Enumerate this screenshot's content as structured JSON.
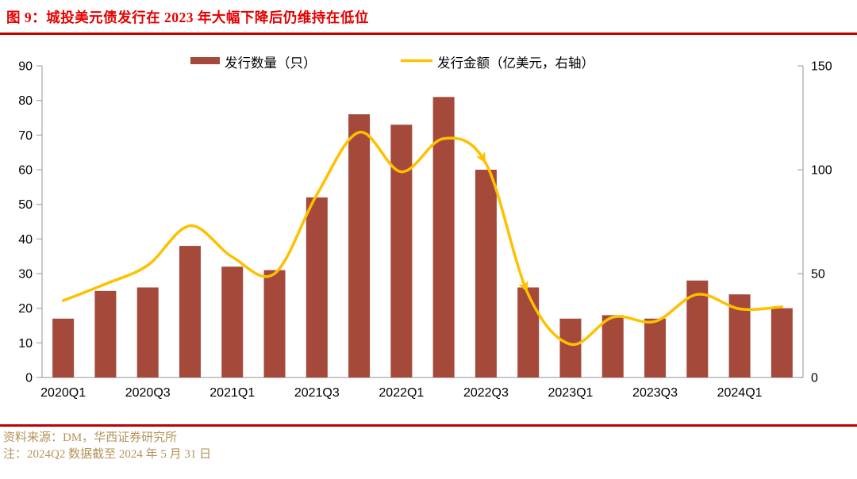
{
  "title": "图 9：城投美元债发行在 2023 年大幅下降后仍维持在低位",
  "footer": {
    "source": "资料来源：DM，华西证券研究所",
    "note": "注：2024Q2 数据截至 2024 年 5 月 31 日"
  },
  "colors": {
    "bar": "#a5493b",
    "line": "#ffc000",
    "title_red": "#e60000",
    "rule_red": "#c00000",
    "footer_gold": "#b5925a",
    "axis": "#a6a6a6",
    "tick_text": "#000000"
  },
  "chart_data": {
    "type": "bar",
    "subtype": "bar+line combo, dual axis",
    "title": "",
    "categories": [
      "2020Q1",
      "2020Q2",
      "2020Q3",
      "2020Q4",
      "2021Q1",
      "2021Q2",
      "2021Q3",
      "2021Q4",
      "2022Q1",
      "2022Q2",
      "2022Q3",
      "2022Q4",
      "2023Q1",
      "2023Q2",
      "2023Q3",
      "2023Q4",
      "2024Q1",
      "2024Q2"
    ],
    "series": [
      {
        "name": "发行数量（只）",
        "type": "bar",
        "axis": "left",
        "values": [
          17,
          25,
          26,
          38,
          32,
          31,
          52,
          76,
          73,
          81,
          60,
          26,
          17,
          18,
          17,
          28,
          24,
          20
        ]
      },
      {
        "name": "发行金额（亿美元，右轴）",
        "type": "line",
        "axis": "right",
        "smooth": true,
        "values": [
          37,
          45,
          54,
          73,
          58,
          50,
          88,
          118,
          99,
          115,
          103,
          40,
          16,
          29,
          27,
          40,
          33,
          34
        ]
      }
    ],
    "left_axis": {
      "min": 0,
      "max": 90,
      "step": 10,
      "ticks": [
        0,
        10,
        20,
        30,
        40,
        50,
        60,
        70,
        80,
        90
      ]
    },
    "right_axis": {
      "min": 0,
      "max": 150,
      "step": 50,
      "ticks": [
        0,
        50,
        100,
        150
      ]
    },
    "x_tick_labels": [
      "2020Q1",
      "2020Q3",
      "2021Q1",
      "2021Q3",
      "2022Q1",
      "2022Q3",
      "2023Q1",
      "2023Q3",
      "2024Q1"
    ],
    "legend_position": "top",
    "grid": false,
    "annotations": [
      {
        "type": "arrowhead",
        "on": "line-series",
        "at_category": "2022Q3"
      },
      {
        "type": "arrowhead",
        "on": "line-series",
        "at_category": "2022Q4"
      }
    ]
  }
}
